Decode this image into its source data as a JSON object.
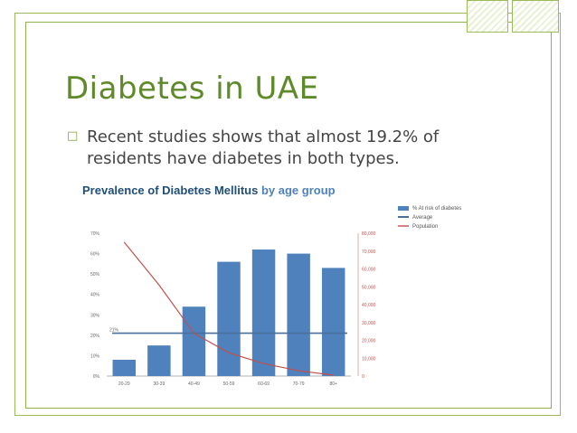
{
  "slide": {
    "title": "Diabetes in UAE",
    "bullet": "Recent studies shows that almost 19.2% of residents have diabetes in both types.",
    "bullet_icon": "box-bullet-icon",
    "accent_color": "#9bbb59",
    "title_color": "#5e8a2a"
  },
  "chart_data": {
    "type": "bar",
    "title": "Prevalence of Diabetes Mellitus by age group",
    "title_bold": "Prevalence of Diabetes Mellitus",
    "title_rest": " by age group",
    "categories": [
      "20-29",
      "30-39",
      "40-49",
      "50-59",
      "60-69",
      "70-79",
      "80+"
    ],
    "series": [
      {
        "name": "% At risk of diabetes",
        "kind": "bar",
        "axis": "left",
        "color": "#4f81bd",
        "values": [
          8,
          15,
          34,
          56,
          62,
          60,
          53
        ]
      },
      {
        "name": "Average",
        "kind": "hline",
        "axis": "left",
        "color": "#4a6f9a",
        "value": 21,
        "label": "21%"
      },
      {
        "name": "Population",
        "kind": "line",
        "axis": "right",
        "color": "#c0504d",
        "values": [
          75000,
          51000,
          24000,
          13000,
          7000,
          3000,
          500
        ]
      }
    ],
    "y_left": {
      "ticks": [
        "0%",
        "10%",
        "20%",
        "30%",
        "40%",
        "50%",
        "60%",
        "70%"
      ],
      "min": 0,
      "max": 70
    },
    "y_right": {
      "ticks": [
        "0",
        "10,000",
        "20,000",
        "30,000",
        "40,000",
        "50,000",
        "60,000",
        "70,000",
        "80,000"
      ],
      "min": 0,
      "max": 80000
    },
    "legend_position": "top-right",
    "grid": false
  }
}
